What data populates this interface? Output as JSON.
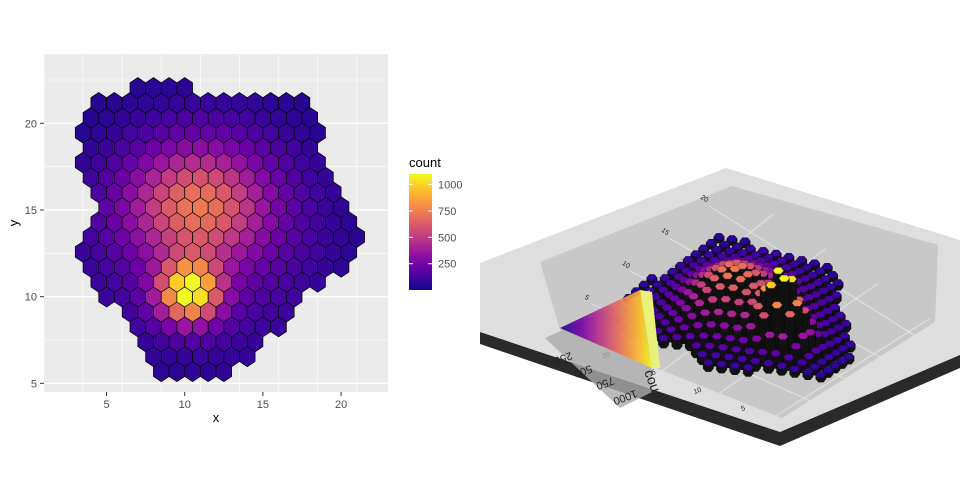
{
  "chart_data": [
    {
      "type": "hexbin",
      "title": "",
      "xlabel": "x",
      "ylabel": "y",
      "xlim": [
        1,
        23
      ],
      "ylim": [
        4.5,
        24
      ],
      "x_ticks": [
        5,
        10,
        15,
        20
      ],
      "y_ticks": [
        5,
        10,
        15,
        20
      ],
      "grid": true,
      "color_scale": {
        "title": "count",
        "ticks": [
          250,
          500,
          750,
          1000
        ],
        "range": [
          1,
          1100
        ],
        "palette": [
          "#0d0887",
          "#46039f",
          "#7201a8",
          "#9c179e",
          "#bd3786",
          "#d8576b",
          "#ed7953",
          "#fb9f3a",
          "#fdca26",
          "#f0f921"
        ]
      },
      "density_model": {
        "components": [
          {
            "center": [
              10.3,
              10.3
            ],
            "sd": [
              1.35,
              1.2
            ],
            "peak": 1000
          },
          {
            "center": [
              10.8,
              15.3
            ],
            "sd": [
              3.0,
              2.3
            ],
            "peak": 560
          },
          {
            "center": [
              11.5,
              13.5
            ],
            "sd": [
              5.5,
              5.0
            ],
            "peak": 160
          }
        ],
        "floor": 25
      }
    },
    {
      "type": "hexbin-3d",
      "description_label": "3D hex columns",
      "legend_title": "count",
      "legend_ticks": [
        "250",
        "500",
        "750",
        "1000"
      ],
      "axis_tick_labels": [
        "5",
        "10",
        "15",
        "20"
      ]
    }
  ]
}
